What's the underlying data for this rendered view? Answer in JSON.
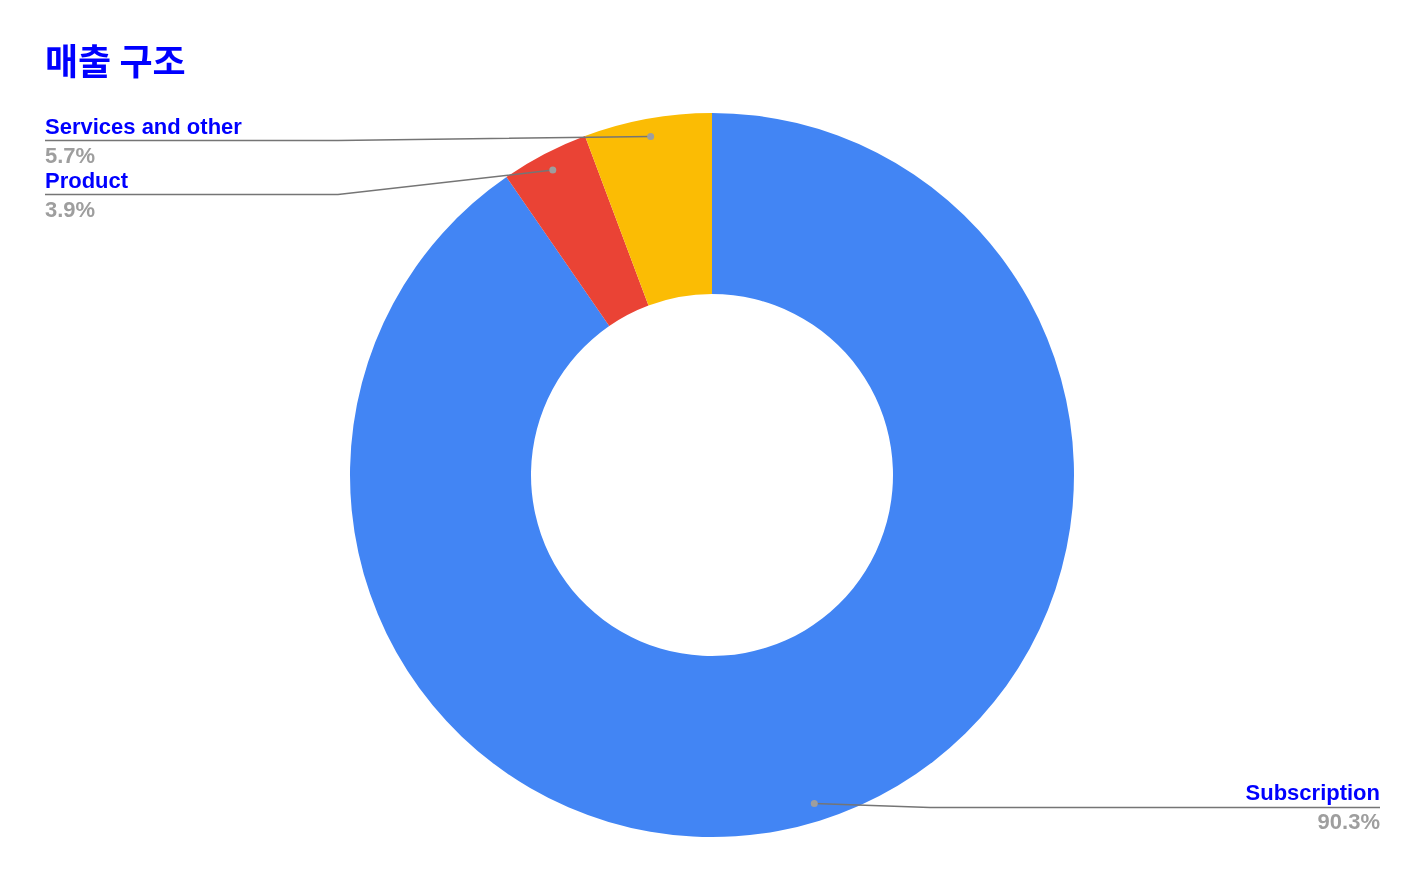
{
  "chart_data": {
    "type": "donut",
    "title": "매출 구조",
    "categories": [
      "Subscription",
      "Product",
      "Services and other"
    ],
    "values": [
      90.3,
      3.9,
      5.7
    ],
    "colors": [
      "#4285f4",
      "#ea4335",
      "#fbbc04"
    ],
    "value_labels": [
      "90.3%",
      "3.9%",
      "5.7%"
    ]
  }
}
